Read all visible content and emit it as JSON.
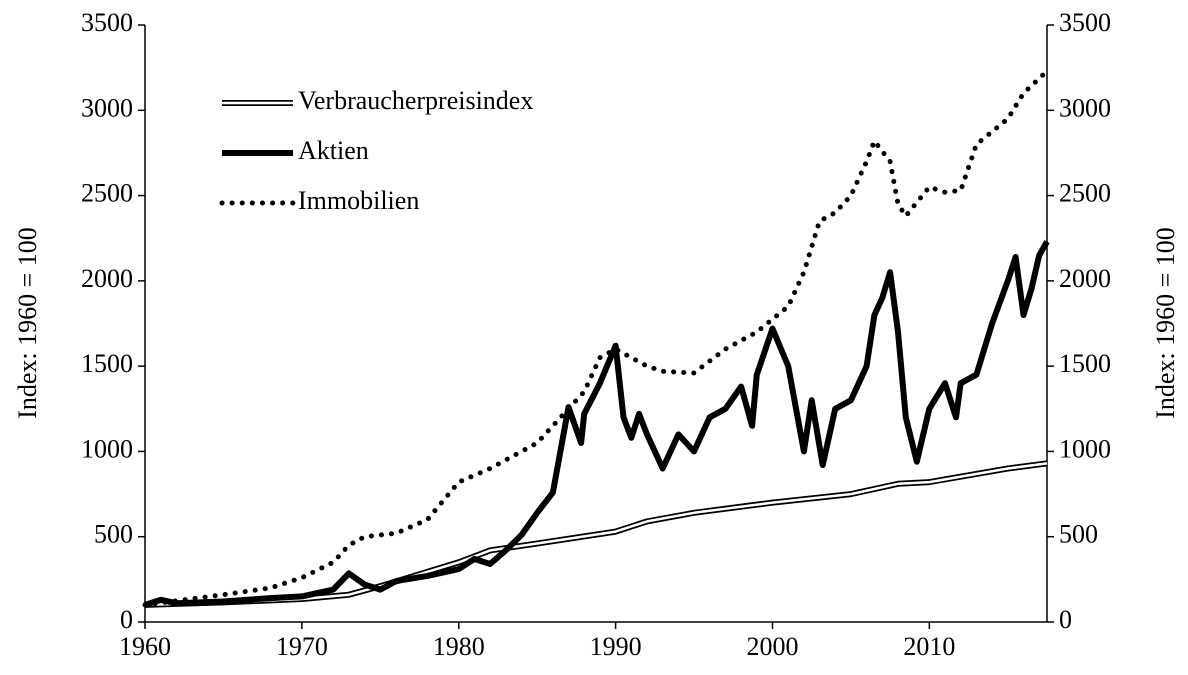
{
  "chart_data": {
    "type": "line",
    "ylabel": "Index: 1960 = 100",
    "y2label": "Index: 1960 = 100",
    "xlim": [
      1960,
      2017.5
    ],
    "xticks": [
      1960,
      1970,
      1980,
      1990,
      2000,
      2010
    ],
    "ylim": [
      0,
      3500
    ],
    "yticks": [
      0,
      500,
      1000,
      1500,
      2000,
      2500,
      3000,
      3500
    ],
    "y2lim": [
      0,
      3500
    ],
    "y2ticks": [
      0,
      500,
      1000,
      1500,
      2000,
      2500,
      3000,
      3500
    ],
    "legend": "upper left",
    "series": [
      {
        "name": "Verbraucherpreisindex",
        "color": "#000000",
        "style": "double",
        "x": [
          1960,
          1965,
          1970,
          1973,
          1975,
          1980,
          1982,
          1985,
          1990,
          1992,
          1995,
          2000,
          2005,
          2008,
          2010,
          2015,
          2017.5
        ],
        "values": [
          100,
          115,
          135,
          160,
          210,
          350,
          420,
          460,
          530,
          590,
          640,
          700,
          750,
          810,
          820,
          900,
          930
        ]
      },
      {
        "name": "Aktien",
        "color": "#000000",
        "style": "thick",
        "x": [
          1960,
          1961,
          1962,
          1965,
          1968,
          1970,
          1972,
          1973,
          1974,
          1975,
          1976,
          1978,
          1980,
          1981,
          1982,
          1983,
          1984,
          1985,
          1986,
          1987,
          1987.8,
          1988,
          1989,
          1990,
          1990.5,
          1991,
          1991.5,
          1992,
          1993,
          1994,
          1995,
          1996,
          1997,
          1998,
          1998.7,
          1999,
          2000,
          2001,
          2002,
          2002.5,
          2003.2,
          2004,
          2005,
          2006,
          2006.5,
          2007,
          2007.5,
          2008,
          2008.5,
          2009.2,
          2010,
          2011,
          2011.7,
          2012,
          2013,
          2014,
          2015,
          2015.5,
          2016,
          2016.5,
          2017,
          2017.5
        ],
        "values": [
          100,
          130,
          110,
          120,
          140,
          150,
          190,
          285,
          220,
          190,
          240,
          270,
          310,
          370,
          340,
          420,
          510,
          640,
          760,
          1260,
          1050,
          1220,
          1400,
          1620,
          1200,
          1080,
          1220,
          1100,
          900,
          1100,
          1000,
          1200,
          1250,
          1380,
          1150,
          1450,
          1720,
          1500,
          1000,
          1300,
          920,
          1250,
          1300,
          1500,
          1800,
          1900,
          2050,
          1700,
          1200,
          940,
          1250,
          1400,
          1200,
          1400,
          1450,
          1750,
          2000,
          2140,
          1800,
          1950,
          2150,
          2230
        ]
      },
      {
        "name": "Immobilien",
        "color": "#000000",
        "style": "dotted",
        "x": [
          1960,
          1965,
          1968,
          1970,
          1972,
          1973,
          1974,
          1976,
          1978,
          1980,
          1982,
          1985,
          1988,
          1989,
          1990,
          1992,
          1993,
          1995,
          1997,
          1999,
          2001,
          2002,
          2003,
          2004,
          2005,
          2006,
          2006.5,
          2007.5,
          2008,
          2008.5,
          2010,
          2011,
          2012,
          2013,
          2015,
          2016,
          2017.5
        ],
        "values": [
          100,
          160,
          200,
          260,
          350,
          450,
          500,
          520,
          600,
          820,
          900,
          1050,
          1350,
          1550,
          1600,
          1500,
          1470,
          1460,
          1600,
          1700,
          1850,
          2050,
          2350,
          2400,
          2500,
          2700,
          2820,
          2700,
          2450,
          2380,
          2550,
          2520,
          2530,
          2800,
          2950,
          3100,
          3230
        ]
      }
    ]
  }
}
